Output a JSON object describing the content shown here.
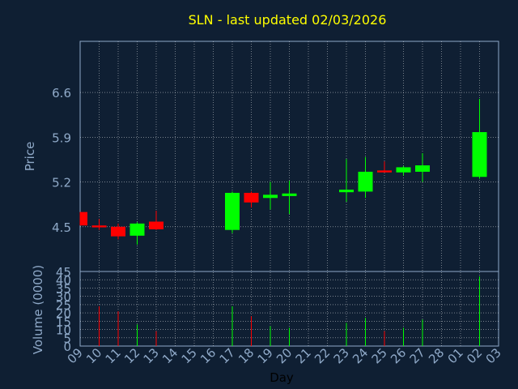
{
  "chart_data": {
    "type": "candlestick",
    "title": "SLN - last updated 02/03/2026",
    "xlabel": "Day",
    "ylabel_price": "Price",
    "ylabel_volume": "Volume (0000)",
    "x_ticks": [
      "09",
      "10",
      "11",
      "12",
      "13",
      "14",
      "15",
      "16",
      "17",
      "18",
      "19",
      "20",
      "21",
      "22",
      "23",
      "24",
      "25",
      "26",
      "27",
      "28",
      "01",
      "02",
      "03"
    ],
    "price_ticks": [
      "4.5",
      "5.2",
      "5.9",
      "6.6"
    ],
    "price_ylim": [
      3.8,
      7.4
    ],
    "volume_ticks": [
      "0",
      "5",
      "10",
      "15",
      "20",
      "25",
      "30",
      "35",
      "40",
      "45"
    ],
    "volume_ylim": [
      0,
      45
    ],
    "colors": {
      "up": "#00ff00",
      "down": "#ff0000",
      "title": "#ffff00",
      "axis_text": "#8fa9c8",
      "grid": "#ffffff"
    },
    "candles": [
      {
        "day": "09",
        "open": 4.73,
        "high": 4.73,
        "low": 4.52,
        "close": 4.52,
        "volume": 0
      },
      {
        "day": "10",
        "open": 4.52,
        "high": 4.62,
        "low": 4.45,
        "close": 4.49,
        "volume": 24
      },
      {
        "day": "11",
        "open": 4.5,
        "high": 4.55,
        "low": 4.3,
        "close": 4.35,
        "volume": 21
      },
      {
        "day": "12",
        "open": 4.36,
        "high": 4.57,
        "low": 4.22,
        "close": 4.55,
        "volume": 13
      },
      {
        "day": "13",
        "open": 4.58,
        "high": 4.75,
        "low": 4.45,
        "close": 4.46,
        "volume": 9
      },
      {
        "day": "17",
        "open": 4.45,
        "high": 5.05,
        "low": 4.4,
        "close": 5.03,
        "volume": 24
      },
      {
        "day": "18",
        "open": 5.03,
        "high": 5.05,
        "low": 4.8,
        "close": 4.88,
        "volume": 18
      },
      {
        "day": "19",
        "open": 4.95,
        "high": 5.2,
        "low": 4.77,
        "close": 5.0,
        "volume": 12
      },
      {
        "day": "20",
        "open": 4.98,
        "high": 5.22,
        "low": 4.7,
        "close": 5.02,
        "volume": 11
      },
      {
        "day": "23",
        "open": 5.04,
        "high": 5.56,
        "low": 4.89,
        "close": 5.08,
        "volume": 14
      },
      {
        "day": "24",
        "open": 5.05,
        "high": 5.59,
        "low": 4.95,
        "close": 5.36,
        "volume": 17
      },
      {
        "day": "25",
        "open": 5.38,
        "high": 5.52,
        "low": 5.35,
        "close": 5.35,
        "volume": 9
      },
      {
        "day": "26",
        "open": 5.35,
        "high": 5.45,
        "low": 5.3,
        "close": 5.43,
        "volume": 11
      },
      {
        "day": "27",
        "open": 5.36,
        "high": 5.65,
        "low": 5.2,
        "close": 5.46,
        "volume": 16
      },
      {
        "day": "02",
        "open": 5.28,
        "high": 6.5,
        "low": 5.25,
        "close": 5.98,
        "volume": 42
      }
    ]
  }
}
